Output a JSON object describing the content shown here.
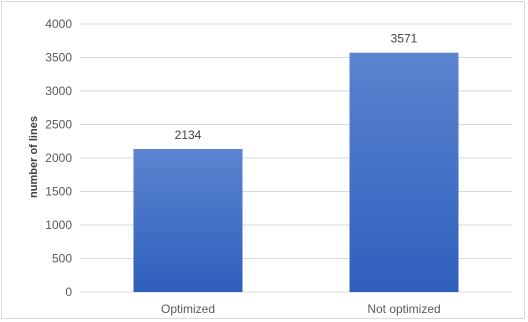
{
  "chart_data": {
    "type": "bar",
    "categories": [
      "Optimized",
      "Not optimized"
    ],
    "values": [
      2134,
      3571
    ],
    "data_labels": [
      "2134",
      "3571"
    ],
    "ylabel": "number of lines",
    "ylim": [
      0,
      4000
    ],
    "yticks": [
      0,
      500,
      1000,
      1500,
      2000,
      2500,
      3000,
      3500,
      4000
    ],
    "ytick_labels": [
      "0",
      "500",
      "1000",
      "1500",
      "2000",
      "2500",
      "3000",
      "3500",
      "4000"
    ],
    "grid": true,
    "legend": "none",
    "bar_color_top": "#5b84d0",
    "bar_color_bottom": "#2f5fbd"
  }
}
